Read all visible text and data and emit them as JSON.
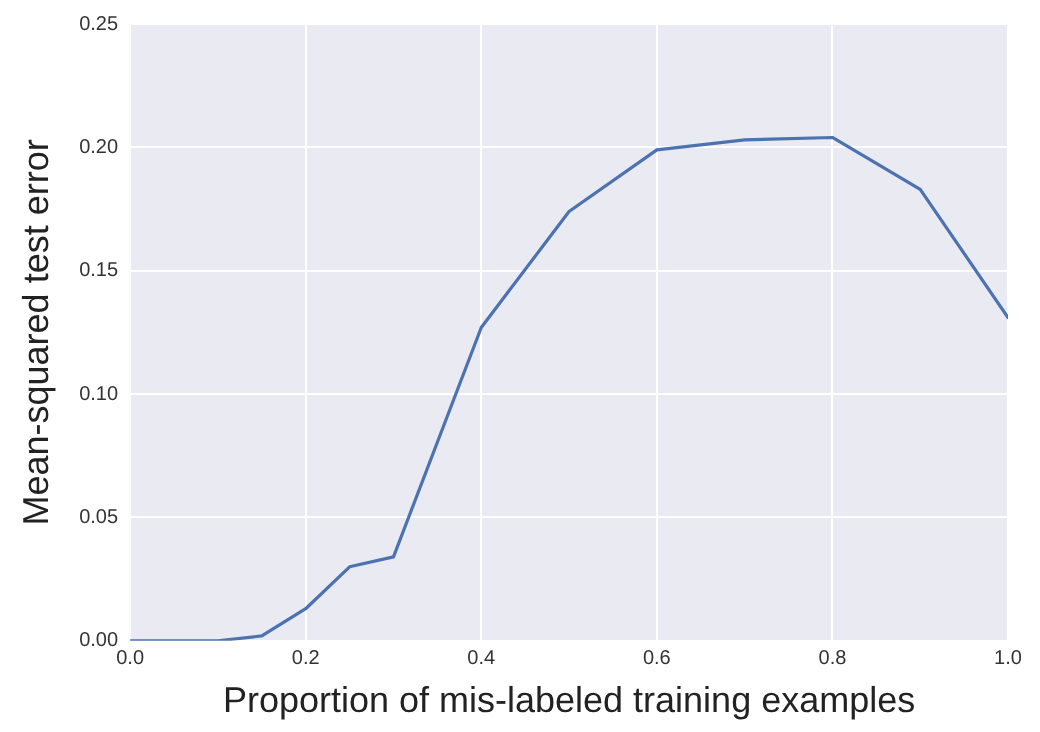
{
  "chart_data": {
    "type": "line",
    "xlabel": "Proportion of mis-labeled training examples",
    "ylabel": "Mean-squared test error",
    "x": [
      0,
      0.05,
      0.1,
      0.15,
      0.2,
      0.25,
      0.3,
      0.4,
      0.5,
      0.6,
      0.7,
      0.8,
      0.9,
      1.0
    ],
    "series": [
      {
        "color": "#4c72b0",
        "values": [
          0,
          0,
          0,
          0.002,
          0.013,
          0.03,
          0.034,
          0.127,
          0.174,
          0.199,
          0.203,
          0.204,
          0.183,
          0.131
        ]
      }
    ],
    "xlim": [
      0,
      1
    ],
    "xticks": [
      {
        "value": 0,
        "label": "0.0"
      },
      {
        "value": 0.2,
        "label": "0.2"
      },
      {
        "value": 0.4,
        "label": "0.4"
      },
      {
        "value": 0.6,
        "label": "0.6"
      },
      {
        "value": 0.8,
        "label": "0.8"
      },
      {
        "value": 1,
        "label": "1.0"
      }
    ],
    "ylim": [
      0,
      0.25
    ],
    "yticks": [
      {
        "value": 0,
        "label": "0.00"
      },
      {
        "value": 0.05,
        "label": "0.05"
      },
      {
        "value": 0.1,
        "label": "0.10"
      },
      {
        "value": 0.15,
        "label": "0.15"
      },
      {
        "value": 0.2,
        "label": "0.20"
      },
      {
        "value": 0.25,
        "label": "0.25"
      }
    ],
    "grid": true,
    "legend": false,
    "marker": "none",
    "line_style": "solid"
  }
}
